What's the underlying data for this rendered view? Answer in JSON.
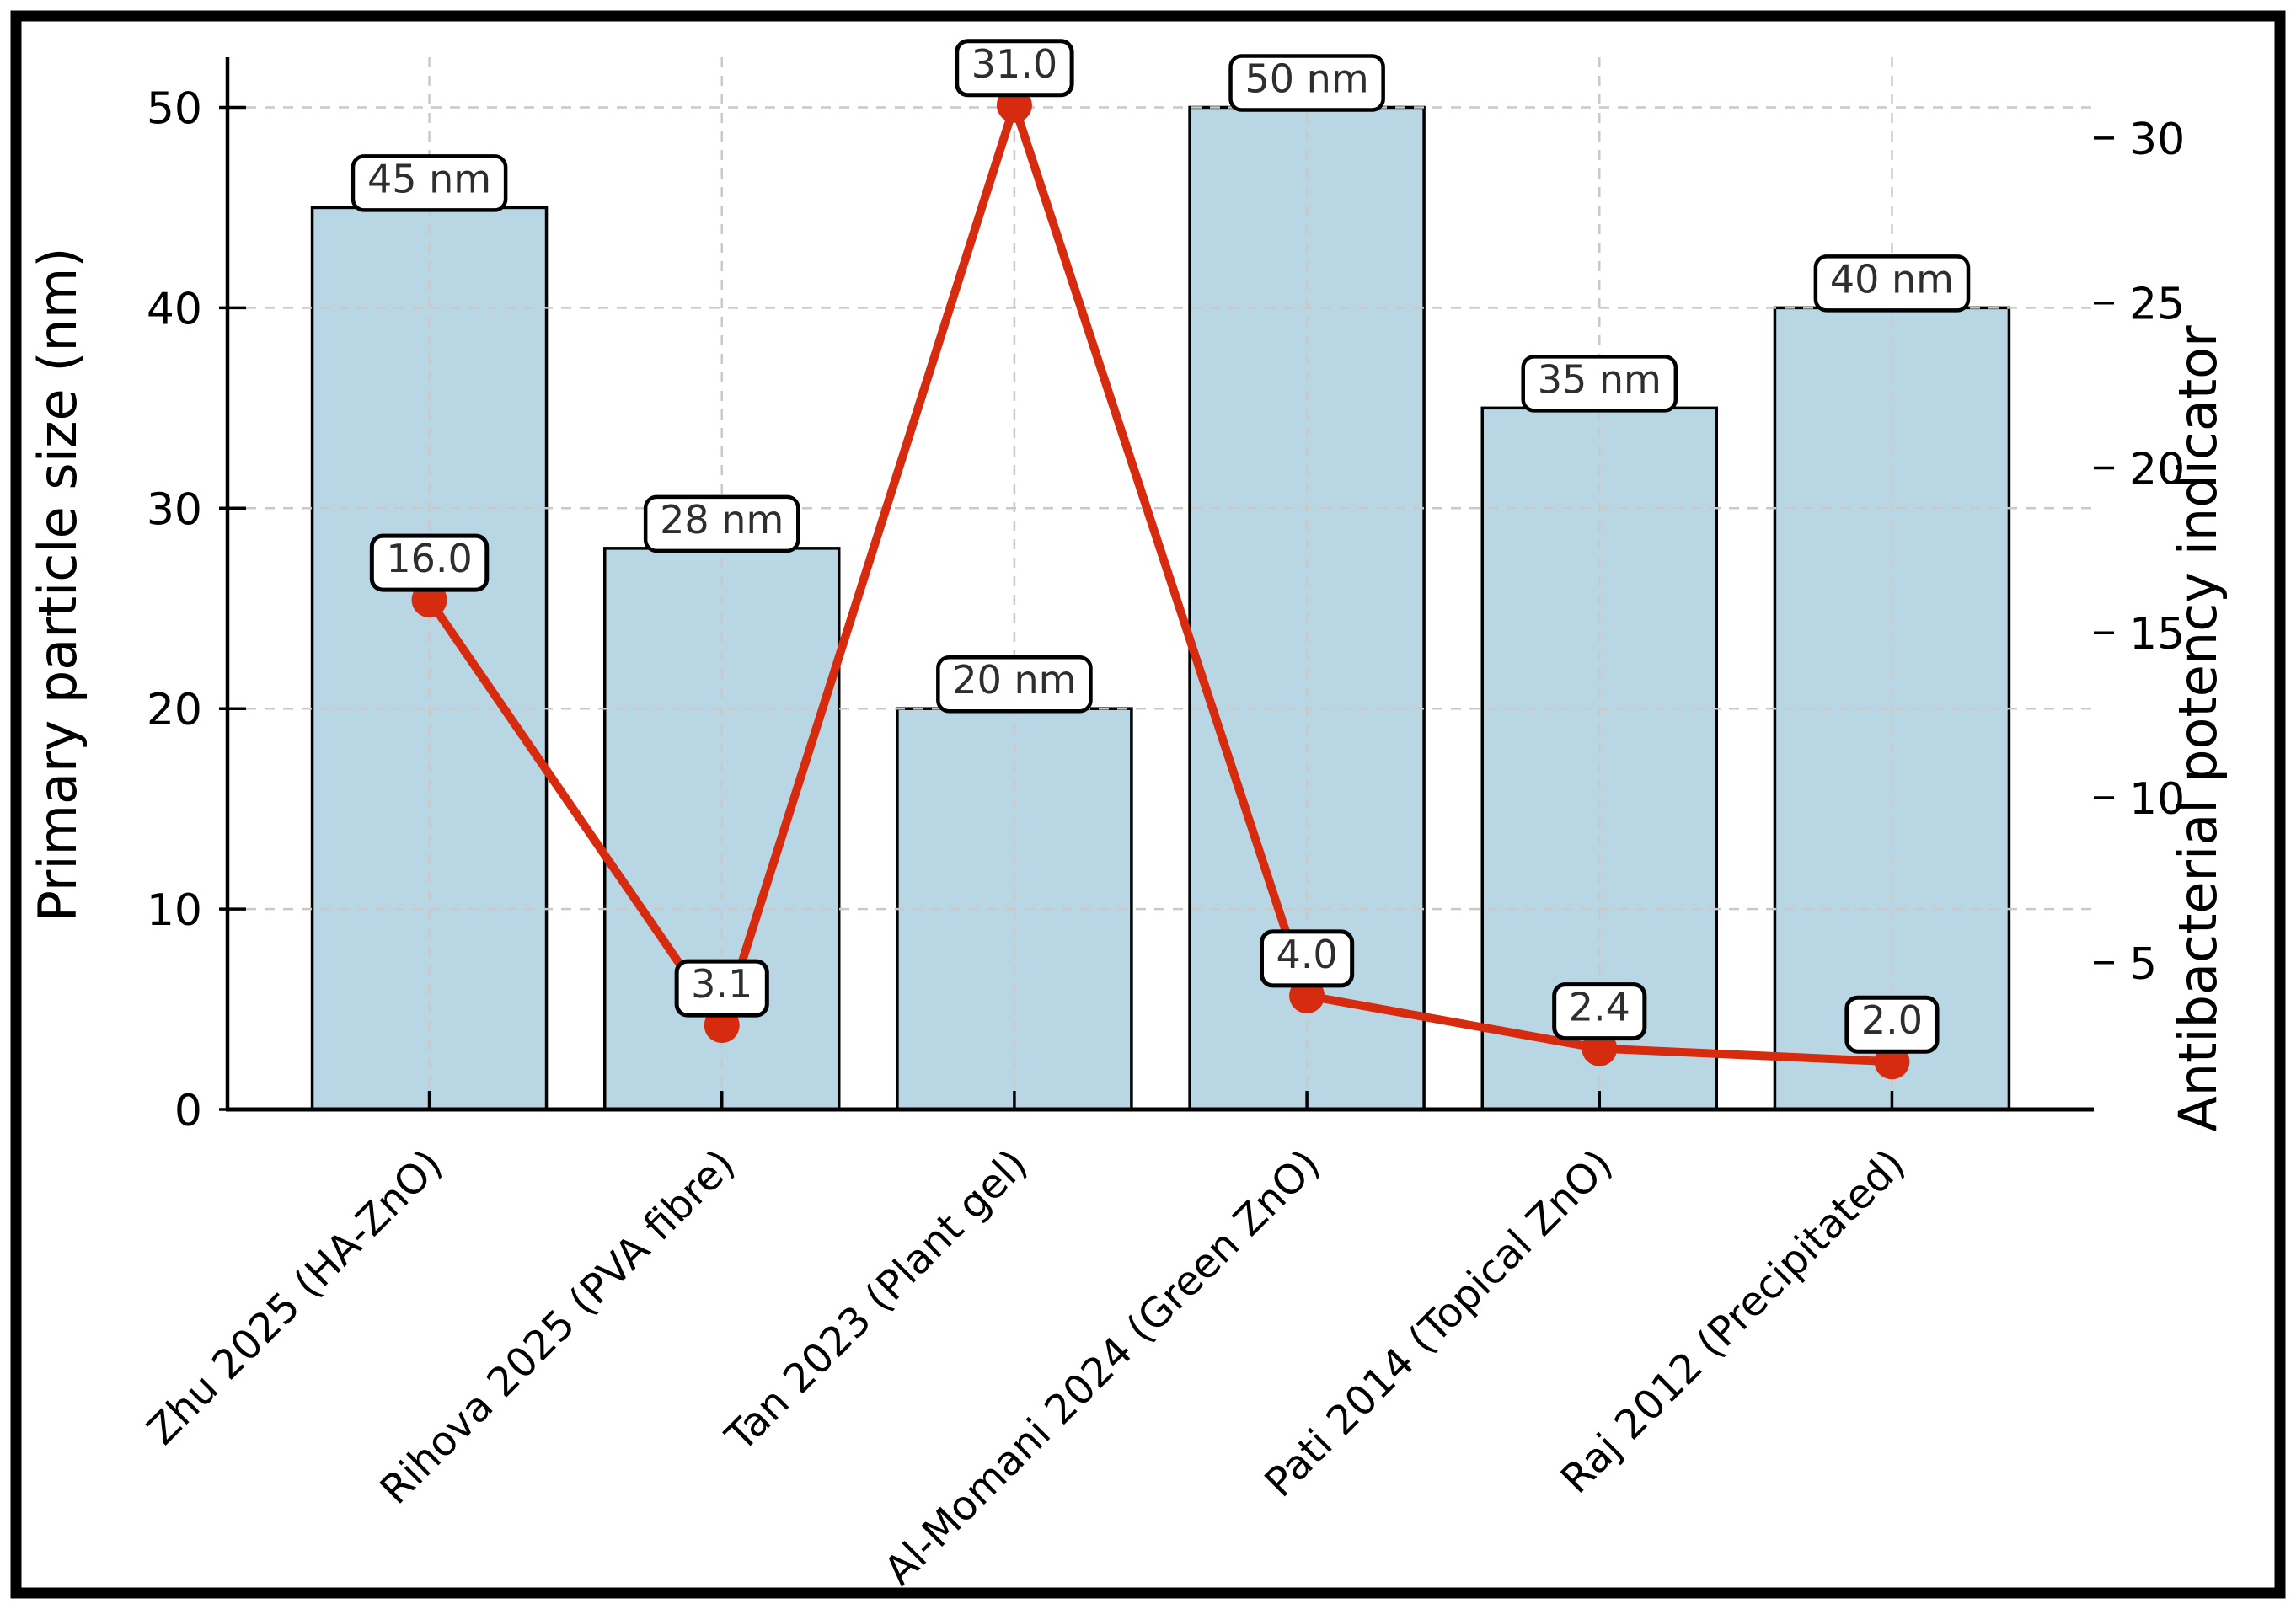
{
  "figure": {
    "background": "#ffffff",
    "border_color": "#000000"
  },
  "chart_data": {
    "type": "bar",
    "subtype": "bar+line-dual-axis",
    "title": "",
    "categories": [
      "Zhu 2025 (HA-ZnO)",
      "Rihova 2025 (PVA fibre)",
      "Tan 2023 (Plant gel)",
      "Al-Momani 2024 (Green ZnO)",
      "Pati 2014 (Topical ZnO)",
      "Raj 2012 (Precipitated)"
    ],
    "series": [
      {
        "name": "Primary particle size",
        "type": "bar",
        "axis": "left",
        "values": [
          45,
          28,
          20,
          50,
          35,
          40
        ],
        "point_labels": [
          "45 nm",
          "28 nm",
          "20 nm",
          "50 nm",
          "35 nm",
          "40 nm"
        ],
        "fill_color": "#b9d6e4",
        "edge_color": "#000000"
      },
      {
        "name": "Antibacterial potency",
        "type": "line",
        "axis": "right",
        "values": [
          16.0,
          3.1,
          31.0,
          4.0,
          2.4,
          2.0
        ],
        "point_labels": [
          "16.0",
          "3.1",
          "31.0",
          "4.0",
          "2.4",
          "2.0"
        ],
        "line_color": "#d62b0e"
      }
    ],
    "left_axis": {
      "label": "Primary particle size (nm)",
      "ticks": [
        0,
        10,
        20,
        30,
        40,
        50
      ],
      "range": [
        0,
        52.5
      ]
    },
    "right_axis": {
      "label": "Antibacterial potency indicator",
      "ticks": [
        5,
        10,
        15,
        20,
        25,
        30
      ],
      "range": [
        0.55,
        32.45
      ]
    },
    "grid": true,
    "grid_color": "#c9c9c9",
    "legend_position": "none",
    "value_label_box": {
      "fill": "#ffffff",
      "border": "#000000",
      "text_color": "#2e2e2e"
    }
  }
}
